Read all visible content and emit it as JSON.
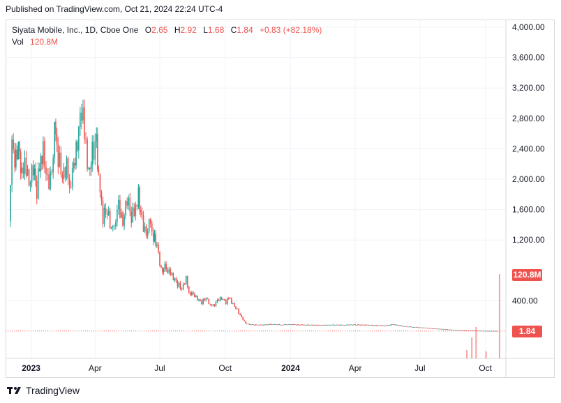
{
  "header": {
    "published": "Published on TradingView.com, Oct 21, 2024 22:24 UTC-4"
  },
  "legend": {
    "symbol": "Siyata Mobile, Inc., 1D, Cboe One",
    "open_label": "O",
    "open": "2.65",
    "high_label": "H",
    "high": "2.92",
    "low_label": "L",
    "low": "1.68",
    "close_label": "C",
    "close": "1.84",
    "change": "+0.83 (+82.18%)",
    "vol_label": "Vol",
    "vol": "120.8M"
  },
  "price_tag": "1.84",
  "volume_tag": "120.8M",
  "footer": {
    "brand": "TradingView"
  },
  "colors": {
    "up": "#26a69a",
    "down": "#ef5350",
    "grid": "#f0f3fa",
    "text": "#131722"
  },
  "chart_data": {
    "type": "candlestick",
    "ylim": [
      0,
      4100
    ],
    "y_ticks": [
      400,
      1200,
      1600,
      2000,
      2400,
      2800,
      3200,
      3600,
      4000
    ],
    "y_tick_labels": [
      "400.00",
      "1,200.00",
      "1,600.00",
      "2,000.00",
      "2,400.00",
      "2,800.00",
      "3,200.00",
      "3,600.00",
      "4,000.00"
    ],
    "x_tick_labels": [
      "2023",
      "Apr",
      "Jul",
      "Oct",
      "2024",
      "Apr",
      "Jul",
      "Oct"
    ],
    "x_tick_dates": [
      "2023-01-01",
      "2023-04-01",
      "2023-07-01",
      "2023-10-01",
      "2024-01-01",
      "2024-04-01",
      "2024-07-01",
      "2024-10-01"
    ],
    "x_range": [
      "2022-11-30",
      "2024-10-25"
    ],
    "close_series": [
      [
        "2022-12-01",
        1450
      ],
      [
        "2022-12-05",
        2400
      ],
      [
        "2022-12-09",
        2150
      ],
      [
        "2022-12-14",
        2500
      ],
      [
        "2022-12-19",
        2050
      ],
      [
        "2022-12-23",
        2300
      ],
      [
        "2022-12-29",
        1900
      ],
      [
        "2023-01-04",
        2150
      ],
      [
        "2023-01-09",
        1850
      ],
      [
        "2023-01-13",
        2200
      ],
      [
        "2023-01-18",
        2400
      ],
      [
        "2023-01-24",
        1950
      ],
      [
        "2023-01-30",
        2050
      ],
      [
        "2023-02-03",
        2600
      ],
      [
        "2023-02-08",
        2300
      ],
      [
        "2023-02-14",
        2050
      ],
      [
        "2023-02-20",
        2200
      ],
      [
        "2023-02-24",
        1950
      ],
      [
        "2023-03-02",
        2150
      ],
      [
        "2023-03-07",
        2450
      ],
      [
        "2023-03-13",
        2950
      ],
      [
        "2023-03-17",
        2600
      ],
      [
        "2023-03-23",
        2100
      ],
      [
        "2023-03-28",
        2350
      ],
      [
        "2023-04-03",
        2500
      ],
      [
        "2023-04-06",
        1950
      ],
      [
        "2023-04-12",
        1500
      ],
      [
        "2023-04-18",
        1600
      ],
      [
        "2023-04-24",
        1350
      ],
      [
        "2023-04-28",
        1450
      ],
      [
        "2023-05-04",
        1650
      ],
      [
        "2023-05-10",
        1400
      ],
      [
        "2023-05-16",
        1750
      ],
      [
        "2023-05-22",
        1500
      ],
      [
        "2023-05-26",
        1600
      ],
      [
        "2023-06-01",
        1800
      ],
      [
        "2023-06-06",
        1450
      ],
      [
        "2023-06-12",
        1250
      ],
      [
        "2023-06-16",
        1400
      ],
      [
        "2023-06-22",
        1250
      ],
      [
        "2023-06-27",
        1150
      ],
      [
        "2023-07-03",
        800
      ],
      [
        "2023-07-10",
        850
      ],
      [
        "2023-07-14",
        780
      ],
      [
        "2023-07-20",
        700
      ],
      [
        "2023-07-26",
        620
      ],
      [
        "2023-08-01",
        560
      ],
      [
        "2023-08-07",
        700
      ],
      [
        "2023-08-11",
        520
      ],
      [
        "2023-08-17",
        480
      ],
      [
        "2023-08-23",
        420
      ],
      [
        "2023-08-29",
        380
      ],
      [
        "2023-09-04",
        440
      ],
      [
        "2023-09-08",
        380
      ],
      [
        "2023-09-14",
        330
      ],
      [
        "2023-09-20",
        400
      ],
      [
        "2023-09-26",
        430
      ],
      [
        "2023-10-02",
        380
      ],
      [
        "2023-10-06",
        440
      ],
      [
        "2023-10-12",
        360
      ],
      [
        "2023-10-18",
        280
      ],
      [
        "2023-10-24",
        180
      ],
      [
        "2023-10-30",
        100
      ],
      [
        "2023-11-06",
        85
      ],
      [
        "2023-11-20",
        80
      ],
      [
        "2023-12-04",
        90
      ],
      [
        "2023-12-18",
        85
      ],
      [
        "2024-01-02",
        88
      ],
      [
        "2024-01-16",
        82
      ],
      [
        "2024-02-01",
        80
      ],
      [
        "2024-02-15",
        78
      ],
      [
        "2024-03-01",
        82
      ],
      [
        "2024-03-15",
        80
      ],
      [
        "2024-04-01",
        85
      ],
      [
        "2024-04-15",
        80
      ],
      [
        "2024-05-01",
        75
      ],
      [
        "2024-05-15",
        72
      ],
      [
        "2024-05-24",
        90
      ],
      [
        "2024-06-05",
        68
      ],
      [
        "2024-06-20",
        55
      ],
      [
        "2024-07-05",
        45
      ],
      [
        "2024-07-20",
        35
      ],
      [
        "2024-08-05",
        25
      ],
      [
        "2024-08-20",
        15
      ],
      [
        "2024-09-05",
        10
      ],
      [
        "2024-09-20",
        6
      ],
      [
        "2024-10-05",
        3
      ],
      [
        "2024-10-18",
        1.84
      ]
    ],
    "volume_spikes": [
      [
        "2024-09-05",
        12
      ],
      [
        "2024-09-12",
        30
      ],
      [
        "2024-09-18",
        45
      ],
      [
        "2024-10-02",
        10
      ],
      [
        "2024-10-21",
        120.8
      ]
    ]
  }
}
